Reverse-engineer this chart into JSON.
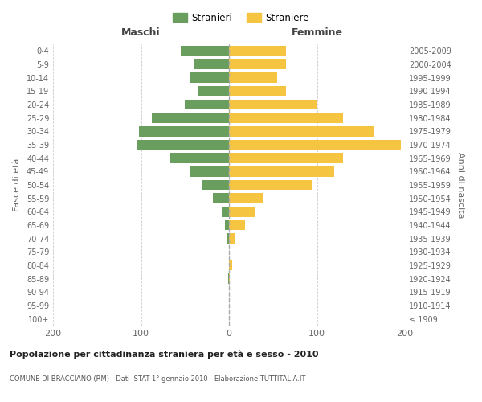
{
  "age_groups": [
    "100+",
    "95-99",
    "90-94",
    "85-89",
    "80-84",
    "75-79",
    "70-74",
    "65-69",
    "60-64",
    "55-59",
    "50-54",
    "45-49",
    "40-44",
    "35-39",
    "30-34",
    "25-29",
    "20-24",
    "15-19",
    "10-14",
    "5-9",
    "0-4"
  ],
  "birth_years": [
    "≤ 1909",
    "1910-1914",
    "1915-1919",
    "1920-1924",
    "1925-1929",
    "1930-1934",
    "1935-1939",
    "1940-1944",
    "1945-1949",
    "1950-1954",
    "1955-1959",
    "1960-1964",
    "1965-1969",
    "1970-1974",
    "1975-1979",
    "1980-1984",
    "1985-1989",
    "1990-1994",
    "1995-1999",
    "2000-2004",
    "2005-2009"
  ],
  "maschi": [
    0,
    0,
    0,
    1,
    0,
    0,
    2,
    5,
    8,
    18,
    30,
    45,
    68,
    105,
    102,
    88,
    50,
    35,
    45,
    40,
    55
  ],
  "femmine": [
    0,
    0,
    0,
    1,
    4,
    0,
    7,
    18,
    30,
    38,
    95,
    120,
    130,
    195,
    165,
    130,
    100,
    65,
    55,
    65,
    65
  ],
  "color_maschi": "#6a9e5e",
  "color_femmine": "#f5c542",
  "title": "Popolazione per cittadinanza straniera per età e sesso - 2010",
  "subtitle": "COMUNE DI BRACCIANO (RM) - Dati ISTAT 1° gennaio 2010 - Elaborazione TUTTITALIA.IT",
  "xlabel_left": "Maschi",
  "xlabel_right": "Femmine",
  "ylabel_left": "Fasce di età",
  "ylabel_right": "Anni di nascita",
  "legend_maschi": "Stranieri",
  "legend_femmine": "Straniere",
  "xlim": 200,
  "background_color": "#ffffff",
  "grid_color": "#cccccc"
}
